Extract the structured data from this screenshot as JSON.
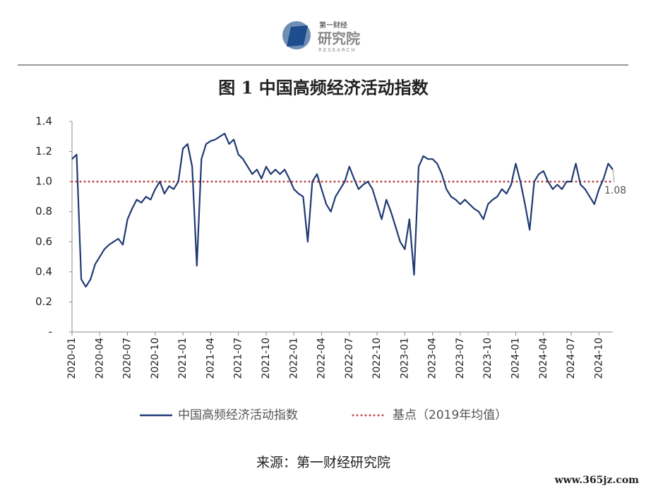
{
  "logo": {
    "top": "第一财经",
    "name": "研究院",
    "sub": "RESEARCH"
  },
  "chart_data": {
    "type": "line",
    "title": "图 1  中国高频经济活动指数",
    "categories": [
      "2020-01",
      null,
      null,
      null,
      null,
      null,
      "2020-04",
      null,
      null,
      null,
      null,
      null,
      "2020-07",
      null,
      null,
      null,
      null,
      null,
      "2020-10",
      null,
      null,
      null,
      null,
      null,
      "2021-01",
      null,
      null,
      null,
      null,
      null,
      "2021-04",
      null,
      null,
      null,
      null,
      null,
      "2021-07",
      null,
      null,
      null,
      null,
      null,
      "2021-10",
      null,
      null,
      null,
      null,
      null,
      "2022-01",
      null,
      null,
      null,
      null,
      null,
      "2022-04",
      null,
      null,
      null,
      null,
      null,
      "2022-07",
      null,
      null,
      null,
      null,
      null,
      "2022-10",
      null,
      null,
      null,
      null,
      null,
      "2023-01",
      null,
      null,
      null,
      null,
      null,
      "2023-04",
      null,
      null,
      null,
      null,
      null,
      "2023-07",
      null,
      null,
      null,
      null,
      null,
      "2023-10",
      null,
      null,
      null,
      null,
      null,
      "2024-01",
      null,
      null,
      null,
      null,
      null,
      "2024-04",
      null,
      null,
      null,
      null,
      null,
      "2024-07",
      null,
      null,
      null,
      null,
      null,
      "2024-10",
      null,
      null,
      null
    ],
    "series": [
      {
        "name": "中国高频经济活动指数",
        "color": "#1f3a73",
        "values": [
          1.15,
          1.18,
          0.35,
          0.3,
          0.35,
          0.45,
          0.5,
          0.55,
          0.58,
          0.6,
          0.62,
          0.58,
          0.75,
          0.82,
          0.88,
          0.86,
          0.9,
          0.88,
          0.95,
          1.0,
          0.92,
          0.97,
          0.95,
          1.0,
          1.22,
          1.25,
          1.1,
          0.44,
          1.15,
          1.25,
          1.27,
          1.28,
          1.3,
          1.32,
          1.25,
          1.28,
          1.18,
          1.15,
          1.1,
          1.05,
          1.08,
          1.02,
          1.1,
          1.05,
          1.08,
          1.05,
          1.08,
          1.02,
          0.95,
          0.92,
          0.9,
          0.6,
          1.0,
          1.05,
          0.95,
          0.85,
          0.8,
          0.9,
          0.95,
          1.0,
          1.1,
          1.02,
          0.95,
          0.98,
          1.0,
          0.95,
          0.85,
          0.75,
          0.88,
          0.8,
          0.7,
          0.6,
          0.55,
          0.75,
          0.38,
          1.1,
          1.17,
          1.15,
          1.15,
          1.12,
          1.05,
          0.95,
          0.9,
          0.88,
          0.85,
          0.88,
          0.85,
          0.82,
          0.8,
          0.75,
          0.85,
          0.88,
          0.9,
          0.95,
          0.92,
          0.98,
          1.12,
          1.0,
          0.85,
          0.68,
          1.0,
          1.05,
          1.07,
          1.0,
          0.95,
          0.98,
          0.95,
          1.0,
          1.0,
          1.12,
          0.98,
          0.95,
          0.9,
          0.85,
          0.95,
          1.02,
          1.12,
          1.08
        ]
      }
    ],
    "reference": {
      "name": "基点（2019年均值）",
      "value": 1,
      "color": "#c0504d"
    },
    "annotations": [
      {
        "text": "1.08"
      }
    ],
    "ylim": [
      0,
      1.4
    ],
    "yticks": [
      {
        "value": 0,
        "label": "-"
      },
      0.2,
      0.4,
      0.6,
      0.8,
      {
        "value": 1,
        "label": "1.0"
      },
      1.2,
      1.4
    ],
    "source": "来源：第一财经研究院"
  },
  "watermark": "www.365jz.com"
}
